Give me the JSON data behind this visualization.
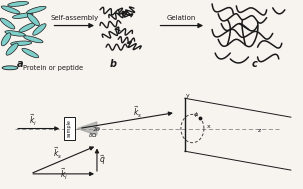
{
  "bg_color": "#f7f4f0",
  "text_color": "#1a1a1a",
  "peptide_fill": "#7ececa",
  "peptide_edge": "#1a1a1a",
  "label_a": "a",
  "label_b": "b",
  "label_c": "c",
  "arrow1_text": "Self-assembly",
  "arrow2_text": "Gelation",
  "legend_text": "Protein or peptide",
  "fig_width": 3.03,
  "fig_height": 1.89,
  "dpi": 100
}
